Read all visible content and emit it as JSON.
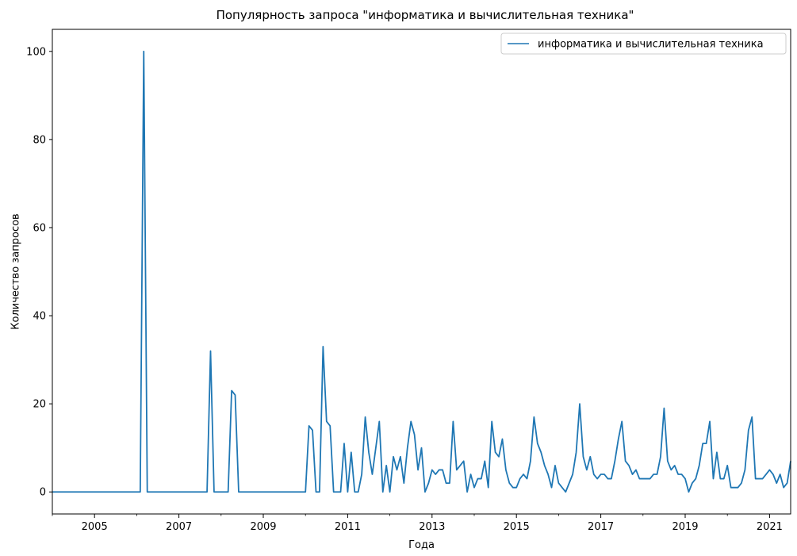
{
  "chart_data": {
    "type": "line",
    "title": "Популярность запроса \"информатика и вычислительная техника\"",
    "xlabel": "Года",
    "ylabel": "Количество запросов",
    "x_start": "2004-01",
    "x_end": "2021-07",
    "x_frequency": "monthly",
    "xlim": [
      "2004-01",
      "2021-07"
    ],
    "ylim": [
      -5,
      105
    ],
    "x_ticks": [
      "2005",
      "2007",
      "2009",
      "2011",
      "2013",
      "2015",
      "2017",
      "2019",
      "2021"
    ],
    "y_ticks": [
      "0",
      "20",
      "40",
      "60",
      "80",
      "100"
    ],
    "grid": false,
    "legend_position": "top-right",
    "series": [
      {
        "name": "информатика и вычислительная техника",
        "color": "#1f77b4",
        "values": [
          0,
          0,
          0,
          0,
          0,
          0,
          0,
          0,
          0,
          0,
          0,
          0,
          0,
          0,
          0,
          0,
          0,
          0,
          0,
          0,
          0,
          0,
          0,
          0,
          0,
          0,
          100,
          0,
          0,
          0,
          0,
          0,
          0,
          0,
          0,
          0,
          0,
          0,
          0,
          0,
          0,
          0,
          0,
          0,
          0,
          32,
          0,
          0,
          0,
          0,
          0,
          23,
          22,
          0,
          0,
          0,
          0,
          0,
          0,
          0,
          0,
          0,
          0,
          0,
          0,
          0,
          0,
          0,
          0,
          0,
          0,
          0,
          0,
          15,
          14,
          0,
          0,
          33,
          16,
          15,
          0,
          0,
          0,
          11,
          0,
          9,
          0,
          0,
          4,
          17,
          9,
          4,
          10,
          16,
          0,
          6,
          0,
          8,
          5,
          8,
          2,
          10,
          16,
          13,
          5,
          10,
          0,
          2,
          5,
          4,
          5,
          5,
          2,
          2,
          16,
          5,
          6,
          7,
          0,
          4,
          1,
          3,
          3,
          7,
          1,
          16,
          9,
          8,
          12,
          5,
          2,
          1,
          1,
          3,
          4,
          3,
          7,
          17,
          11,
          9,
          6,
          4,
          1,
          6,
          2,
          1,
          0,
          2,
          4,
          9,
          20,
          8,
          5,
          8,
          4,
          3,
          4,
          4,
          3,
          3,
          7,
          12,
          16,
          7,
          6,
          4,
          5,
          3,
          3,
          3,
          3,
          4,
          4,
          8,
          19,
          7,
          5,
          6,
          4,
          4,
          3,
          0,
          2,
          3,
          6,
          11,
          11,
          16,
          3,
          9,
          3,
          3,
          6,
          1,
          1,
          1,
          2,
          5,
          14,
          17,
          3,
          3,
          3,
          4,
          5,
          4,
          2,
          4,
          1,
          2,
          7
        ]
      }
    ]
  }
}
